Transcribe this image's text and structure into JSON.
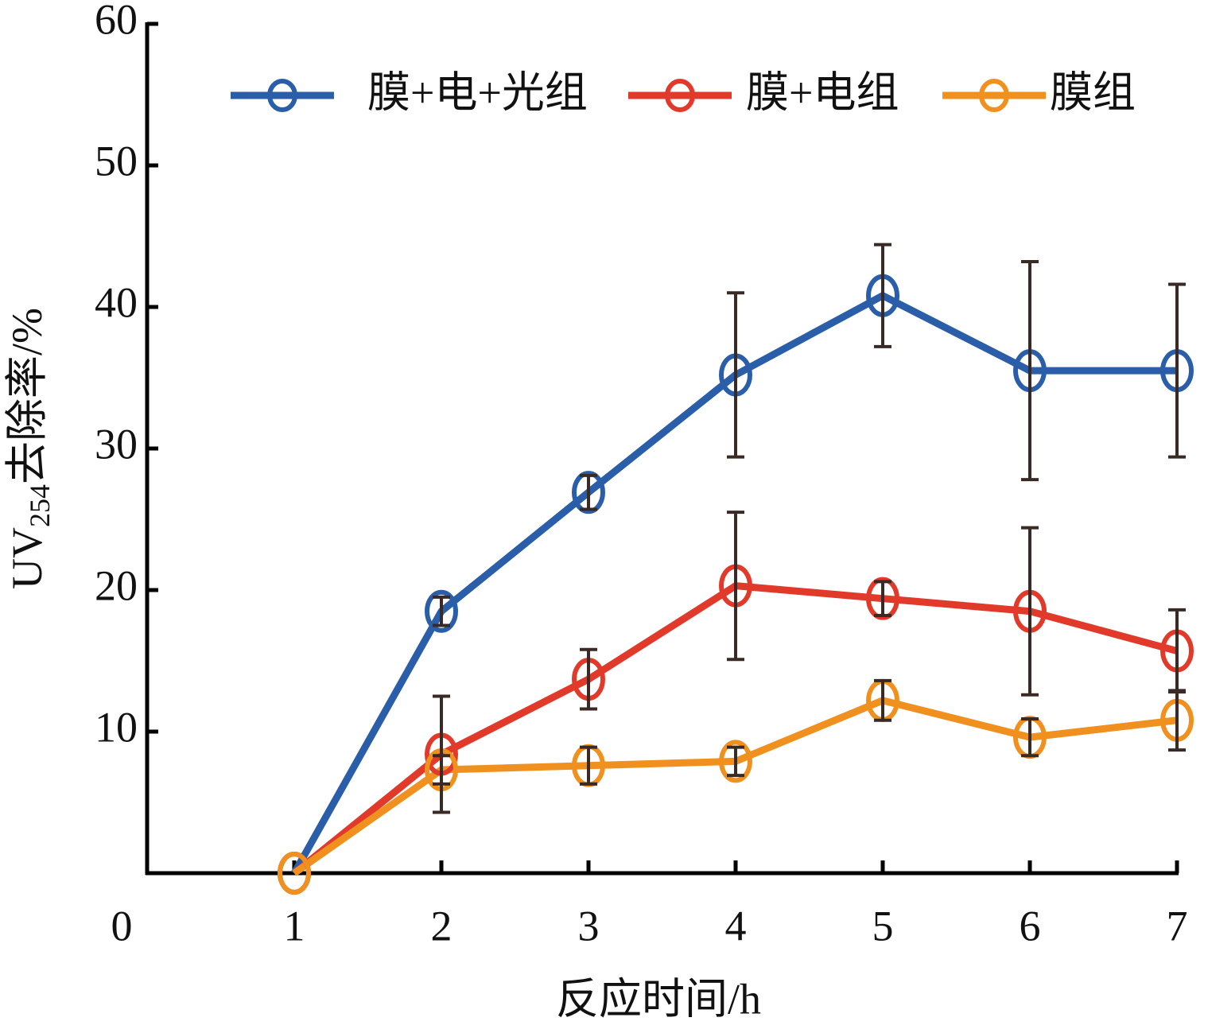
{
  "chart_data": {
    "type": "line",
    "xlabel": "反应时间/h",
    "ylabel": [
      "UV",
      "254",
      "去除率/%"
    ],
    "x": [
      1,
      2,
      3,
      4,
      5,
      6,
      7
    ],
    "series": [
      {
        "name": "膜+电+光组",
        "color": "#2a5ea8",
        "values": [
          0,
          18.5,
          26.9,
          35.2,
          40.8,
          35.5,
          35.5
        ],
        "errors": [
          null,
          1.0,
          1.2,
          5.8,
          3.6,
          7.7,
          6.1
        ]
      },
      {
        "name": "膜+电组",
        "color": "#e23a2a",
        "values": [
          0,
          8.4,
          13.7,
          20.3,
          19.4,
          18.5,
          15.7
        ],
        "errors": [
          null,
          4.1,
          2.1,
          5.2,
          1.2,
          5.9,
          2.9
        ]
      },
      {
        "name": "膜组",
        "color": "#f0901e",
        "values": [
          0,
          7.3,
          7.6,
          7.9,
          12.2,
          9.6,
          10.8
        ],
        "errors": [
          null,
          1.0,
          1.3,
          1.0,
          1.4,
          1.3,
          2.1
        ]
      }
    ],
    "xlim": [
      0,
      7
    ],
    "xticks": [
      0,
      1,
      2,
      3,
      4,
      5,
      6,
      7
    ],
    "ylim": [
      0,
      60
    ],
    "yticks": [
      10,
      20,
      30,
      40,
      50,
      60
    ],
    "grid": false,
    "legend": "top"
  }
}
